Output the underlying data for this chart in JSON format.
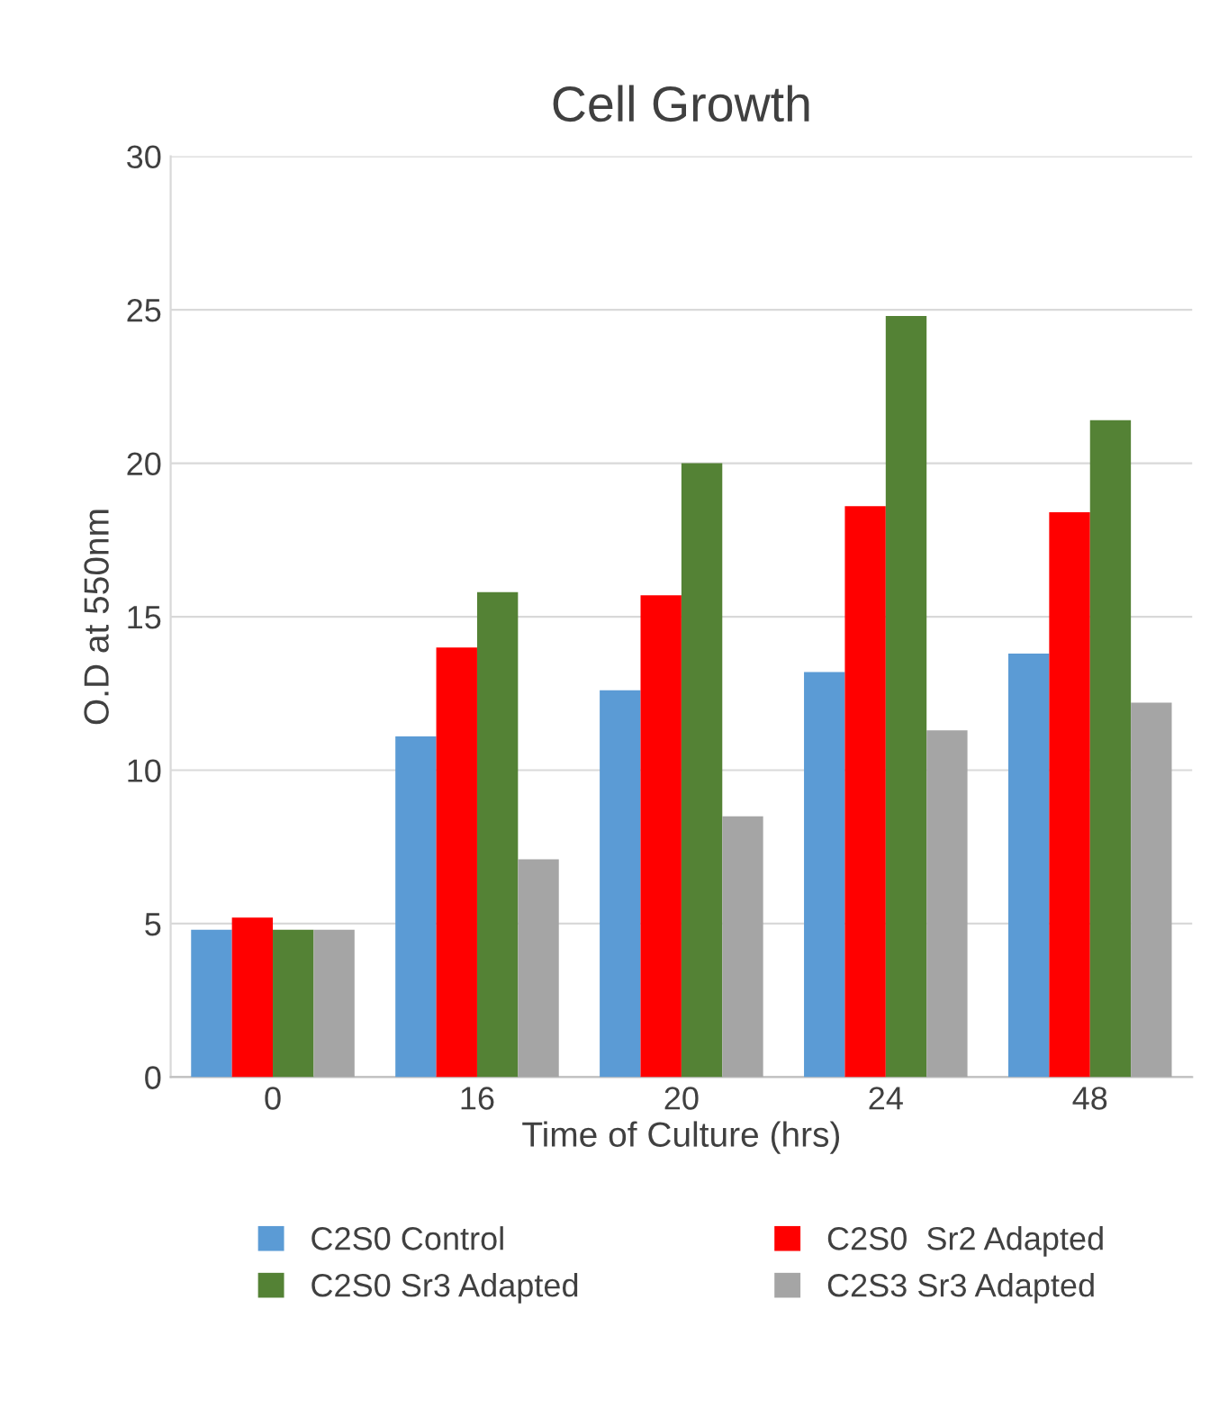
{
  "chart_data": {
    "type": "bar",
    "title": "Cell Growth",
    "xlabel": "Time of Culture (hrs)",
    "ylabel": "O.D at 550nm",
    "categories": [
      "0",
      "16",
      "20",
      "24",
      "48"
    ],
    "series": [
      {
        "name": "C2S0 Control",
        "color": "#5b9bd5",
        "values": [
          4.8,
          11.1,
          12.6,
          13.2,
          13.8
        ]
      },
      {
        "name": "C2S0  Sr2 Adapted",
        "color": "#ff0000",
        "values": [
          5.2,
          14.0,
          15.7,
          18.6,
          18.4
        ]
      },
      {
        "name": "C2S0 Sr3 Adapted",
        "color": "#548235",
        "values": [
          4.8,
          15.8,
          20.0,
          24.8,
          21.4
        ]
      },
      {
        "name": "C2S3 Sr3 Adapted",
        "color": "#a5a5a5",
        "values": [
          4.8,
          7.1,
          8.5,
          11.3,
          12.2
        ]
      }
    ],
    "ylim": [
      0,
      30
    ],
    "yticks": [
      0,
      5,
      10,
      15,
      20,
      25,
      30
    ],
    "grid": "y",
    "legend": "bottom"
  }
}
